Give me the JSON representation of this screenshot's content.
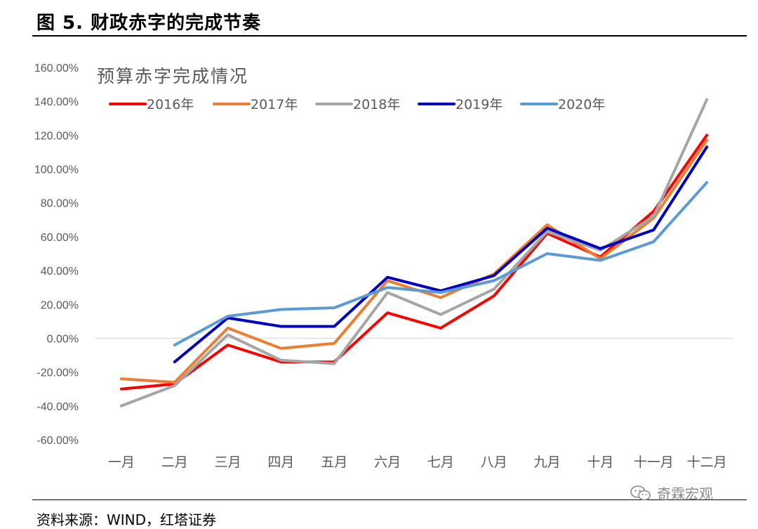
{
  "figure": {
    "title": "图 5. 财政赤字的完成节奏",
    "source": "资料来源：WIND，红塔证券",
    "watermark": "奇霖宏观"
  },
  "chart_data": {
    "type": "line",
    "title": "预算赤字完成情况",
    "xlabel": "",
    "ylabel": "",
    "categories": [
      "一月",
      "二月",
      "三月",
      "四月",
      "五月",
      "六月",
      "七月",
      "八月",
      "九月",
      "十月",
      "十一月",
      "十二月"
    ],
    "ylim": [
      -60,
      160
    ],
    "yticks": [
      -60,
      -40,
      -20,
      0,
      20,
      40,
      60,
      80,
      100,
      120,
      140,
      160
    ],
    "ytick_labels": [
      "-60.00%",
      "-40.00%",
      "-20.00%",
      "0.00%",
      "20.00%",
      "40.00%",
      "60.00%",
      "80.00%",
      "100.00%",
      "120.00%",
      "140.00%",
      "160.00%"
    ],
    "grid": false,
    "legend_position": "top-left",
    "series": [
      {
        "name": "2016年",
        "color": "#ff0000",
        "values": [
          -30,
          -27,
          -4,
          -14,
          -14,
          15,
          6,
          25,
          62,
          48,
          75,
          120
        ]
      },
      {
        "name": "2017年",
        "color": "#ed7d31",
        "values": [
          -24,
          -26,
          6,
          -6,
          -3,
          34,
          24,
          38,
          67,
          47,
          71,
          117
        ]
      },
      {
        "name": "2018年",
        "color": "#a5a5a5",
        "values": [
          -40,
          -28,
          2,
          -13,
          -15,
          27,
          14,
          29,
          63,
          52,
          72,
          141
        ]
      },
      {
        "name": "2019年",
        "color": "#0000c0",
        "values": [
          null,
          -14,
          12,
          7,
          7,
          36,
          28,
          37,
          65,
          53,
          64,
          113
        ]
      },
      {
        "name": "2020年",
        "color": "#5b9bd5",
        "values": [
          null,
          -4,
          13,
          17,
          18,
          30,
          27,
          34,
          50,
          46,
          57,
          92
        ]
      }
    ]
  }
}
